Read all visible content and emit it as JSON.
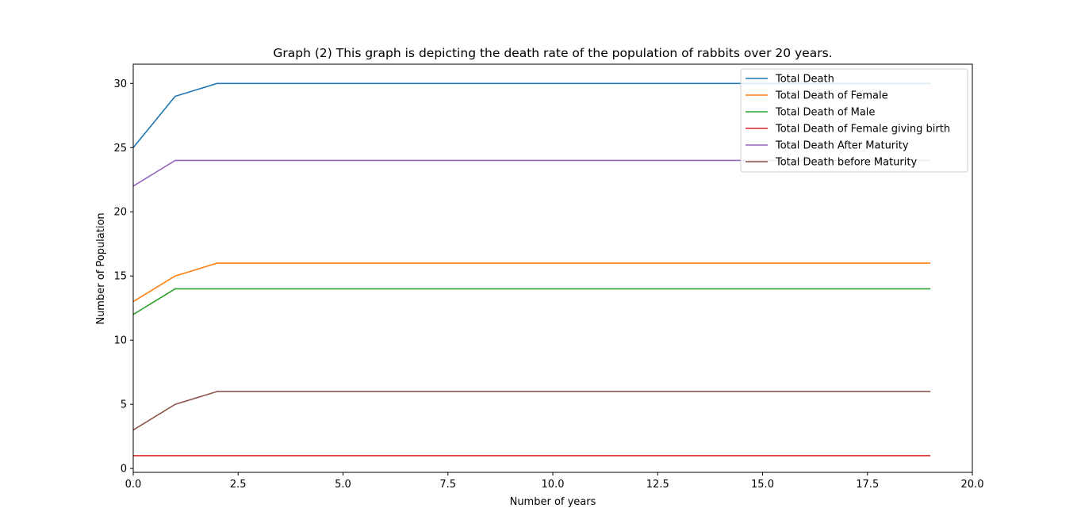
{
  "chart_data": {
    "type": "line",
    "title": "Graph (2) This graph is depicting the death rate of the population of rabbits over 20 years.",
    "xlabel": "Number of years",
    "ylabel": "Number of Population",
    "xlim": [
      0,
      20
    ],
    "ylim": [
      -0.3,
      31.5
    ],
    "xticks": [
      0,
      2.5,
      5,
      7.5,
      10,
      12.5,
      15,
      17.5,
      20
    ],
    "xtick_labels": [
      "0.0",
      "2.5",
      "5.0",
      "7.5",
      "10.0",
      "12.5",
      "15.0",
      "17.5",
      "20.0"
    ],
    "yticks": [
      0,
      5,
      10,
      15,
      20,
      25,
      30
    ],
    "ytick_labels": [
      "0",
      "5",
      "10",
      "15",
      "20",
      "25",
      "30"
    ],
    "grid": false,
    "legend_position": "top-right",
    "x": [
      0,
      1,
      2,
      3,
      4,
      5,
      6,
      7,
      8,
      9,
      10,
      11,
      12,
      13,
      14,
      15,
      16,
      17,
      18,
      19
    ],
    "series": [
      {
        "name": "Total Death",
        "color": "#1f77b4",
        "values": [
          25,
          29,
          30,
          30,
          30,
          30,
          30,
          30,
          30,
          30,
          30,
          30,
          30,
          30,
          30,
          30,
          30,
          30,
          30,
          30
        ]
      },
      {
        "name": "Total Death of Female",
        "color": "#ff7f0e",
        "values": [
          13,
          15,
          16,
          16,
          16,
          16,
          16,
          16,
          16,
          16,
          16,
          16,
          16,
          16,
          16,
          16,
          16,
          16,
          16,
          16
        ]
      },
      {
        "name": "Total Death of Male",
        "color": "#2ca02c",
        "values": [
          12,
          14,
          14,
          14,
          14,
          14,
          14,
          14,
          14,
          14,
          14,
          14,
          14,
          14,
          14,
          14,
          14,
          14,
          14,
          14
        ]
      },
      {
        "name": "Total Death of Female giving birth",
        "color": "#d62728",
        "values": [
          1,
          1,
          1,
          1,
          1,
          1,
          1,
          1,
          1,
          1,
          1,
          1,
          1,
          1,
          1,
          1,
          1,
          1,
          1,
          1
        ]
      },
      {
        "name": "Total Death After Maturity",
        "color": "#9467bd",
        "values": [
          22,
          24,
          24,
          24,
          24,
          24,
          24,
          24,
          24,
          24,
          24,
          24,
          24,
          24,
          24,
          24,
          24,
          24,
          24,
          24
        ]
      },
      {
        "name": "Total Death before Maturity",
        "color": "#8c564b",
        "values": [
          3,
          5,
          6,
          6,
          6,
          6,
          6,
          6,
          6,
          6,
          6,
          6,
          6,
          6,
          6,
          6,
          6,
          6,
          6,
          6
        ]
      }
    ]
  }
}
